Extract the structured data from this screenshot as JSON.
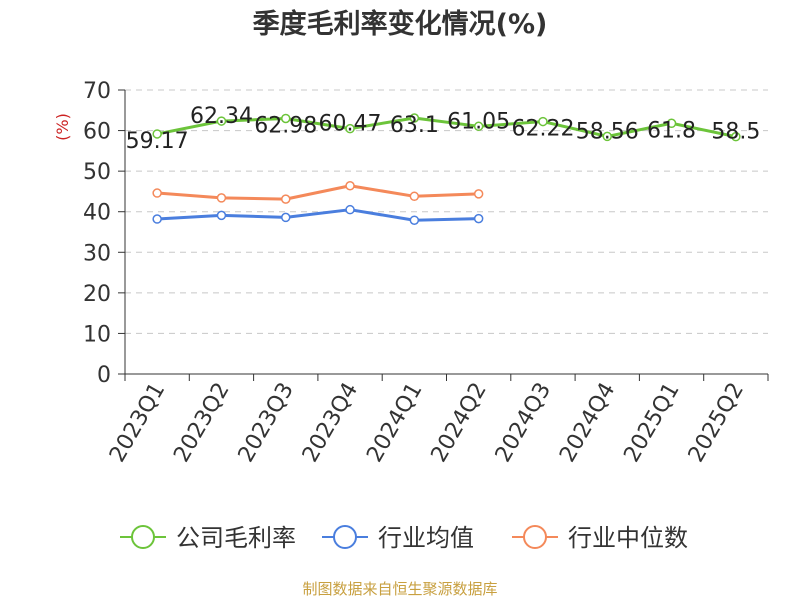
{
  "title": "季度毛利率变化情况(%)",
  "source": "制图数据来自恒生聚源数据库",
  "colors": {
    "company": "#6cc43a",
    "industry_avg": "#4a7ede",
    "industry_median": "#f4895a",
    "ylabel": "#cc2222",
    "grid": "#c8c8c8",
    "axis": "#333333"
  },
  "chart_data": {
    "type": "line",
    "ylabel": "(%)",
    "ylim": [
      0,
      70
    ],
    "yticks": [
      0,
      10,
      20,
      30,
      40,
      50,
      60,
      70
    ],
    "grid": "horizontal dashed",
    "legend_position": "bottom",
    "categories": [
      "2023Q1",
      "2023Q2",
      "2023Q3",
      "2023Q4",
      "2024Q1",
      "2024Q2",
      "2024Q3",
      "2024Q4",
      "2025Q1",
      "2025Q2"
    ],
    "series": [
      {
        "name": "公司毛利率",
        "color_key": "company",
        "labels": true,
        "values": [
          59.17,
          62.34,
          62.98,
          60.47,
          63.1,
          61.05,
          62.22,
          58.56,
          61.8,
          58.5
        ]
      },
      {
        "name": "行业均值",
        "color_key": "industry_avg",
        "labels": false,
        "values": [
          38.2,
          39.1,
          38.6,
          40.5,
          37.9,
          38.3,
          null,
          null,
          null,
          null
        ]
      },
      {
        "name": "行业中位数",
        "color_key": "industry_median",
        "labels": false,
        "values": [
          44.6,
          43.4,
          43.1,
          46.4,
          43.8,
          44.4,
          null,
          null,
          null,
          null
        ]
      }
    ]
  }
}
